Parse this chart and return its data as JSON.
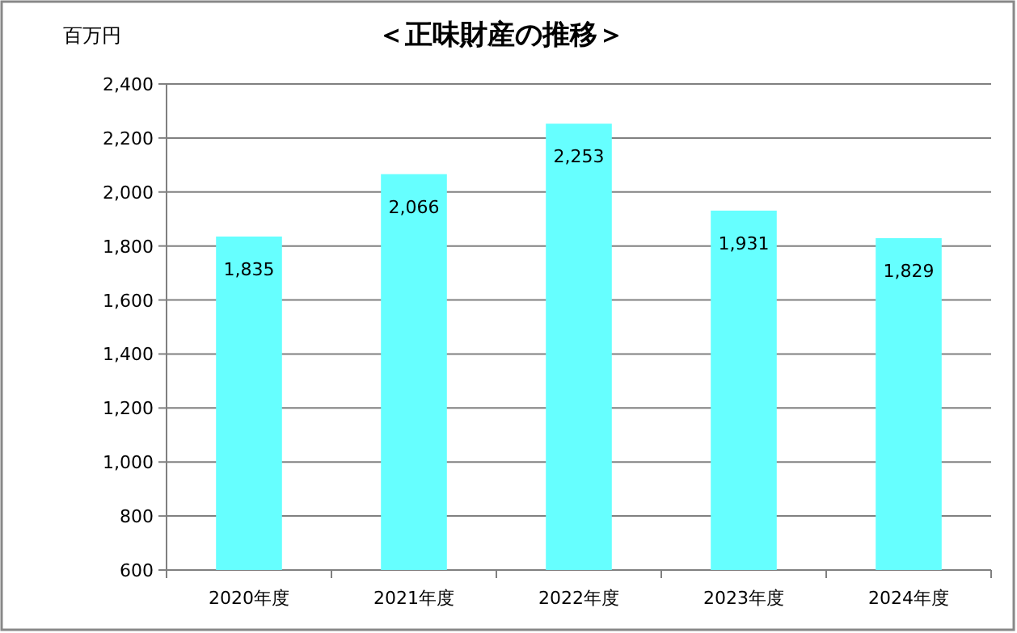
{
  "chart_data": {
    "type": "bar",
    "title": "＜正味財産の推移＞",
    "ylabel": "百万円",
    "categories": [
      "2020年度",
      "2021年度",
      "2022年度",
      "2023年度",
      "2024年度"
    ],
    "values": [
      1835,
      2066,
      2253,
      1931,
      1829
    ],
    "value_labels": [
      "1,835",
      "2,066",
      "2,253",
      "1,931",
      "1,829"
    ],
    "color": "#66ffff",
    "ylim": [
      600,
      2400
    ],
    "yticks": [
      {
        "value": 600,
        "label": "600"
      },
      {
        "value": 800,
        "label": "800"
      },
      {
        "value": 1000,
        "label": "1,000"
      },
      {
        "value": 1200,
        "label": "1,200"
      },
      {
        "value": 1400,
        "label": "1,400"
      },
      {
        "value": 1600,
        "label": "1,600"
      },
      {
        "value": 1800,
        "label": "1,800"
      },
      {
        "value": 2000,
        "label": "2,000"
      },
      {
        "value": 2200,
        "label": "2,200"
      },
      {
        "value": 2400,
        "label": "2,400"
      }
    ],
    "grid": "y"
  }
}
